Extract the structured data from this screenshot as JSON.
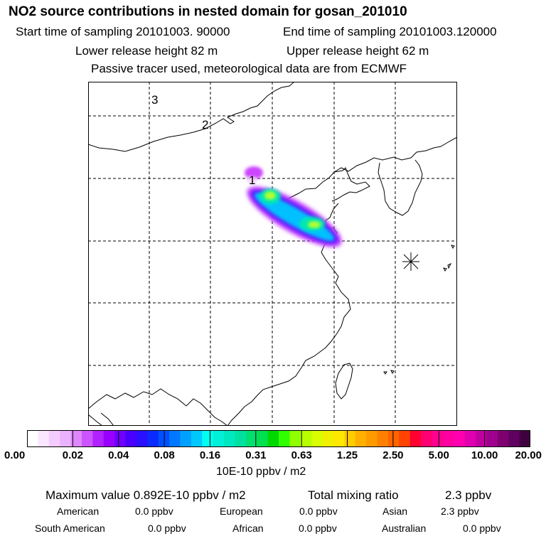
{
  "header": {
    "title": "NO2 source contributions in nested domain for gosan_201010",
    "start_time": "Start time of sampling 20101003. 90000",
    "end_time": "End time of sampling 20101003.120000",
    "lower_release": "Lower release height   82 m",
    "upper_release": "Upper release height   62 m",
    "note": "Passive tracer used, meteorological data are from ECMWF"
  },
  "map": {
    "domain_labels": [
      "3",
      "2",
      "1"
    ],
    "receptor_icon": "star-burst-icon",
    "plume_colors": [
      "#c040ff",
      "#6020ff",
      "#00c0ff",
      "#00e8b0",
      "#b0ff30"
    ]
  },
  "colorbar": {
    "tick_labels": [
      "0.00",
      "0.02",
      "0.04",
      "0.08",
      "0.16",
      "0.31",
      "0.63",
      "1.25",
      "2.50",
      "5.00",
      "10.00",
      "20.00"
    ],
    "unit": "10E-10 ppbv / m2",
    "colors": [
      "#ffffff",
      "#fbe6ff",
      "#f4ccff",
      "#eab2ff",
      "#dd88ff",
      "#cc55ff",
      "#b022ff",
      "#9a00ff",
      "#7000ff",
      "#4a00ff",
      "#2a10ff",
      "#0a2aff",
      "#0050ff",
      "#0078ff",
      "#00a0ff",
      "#00c8ff",
      "#00fff0",
      "#00f0d8",
      "#00e8c0",
      "#00e0a0",
      "#00e070",
      "#00e050",
      "#00d800",
      "#30ff00",
      "#90ff00",
      "#b8ff00",
      "#d8ff00",
      "#f0f000",
      "#ffe800",
      "#ffcc00",
      "#ffb000",
      "#ff9a00",
      "#ff8000",
      "#ff6400",
      "#ff4400",
      "#ff0030",
      "#ff0070",
      "#ff0090",
      "#ff00a0",
      "#ff00b0",
      "#e000b0",
      "#c000a0",
      "#a00090",
      "#800070",
      "#600060",
      "#400040"
    ]
  },
  "summary": {
    "max_value": "Maximum value  0.892E-10 ppbv / m2",
    "total_mixing": "Total mixing ratio",
    "total_mixing_value": "2.3 ppbv",
    "regions": [
      {
        "name": "American",
        "value": "0.0 ppbv"
      },
      {
        "name": "European",
        "value": "0.0 ppbv"
      },
      {
        "name": "Asian",
        "value": "2.3 ppbv"
      },
      {
        "name": "South American",
        "value": "0.0 ppbv"
      },
      {
        "name": "African",
        "value": "0.0 ppbv"
      },
      {
        "name": "Australian",
        "value": "0.0 ppbv"
      }
    ]
  }
}
